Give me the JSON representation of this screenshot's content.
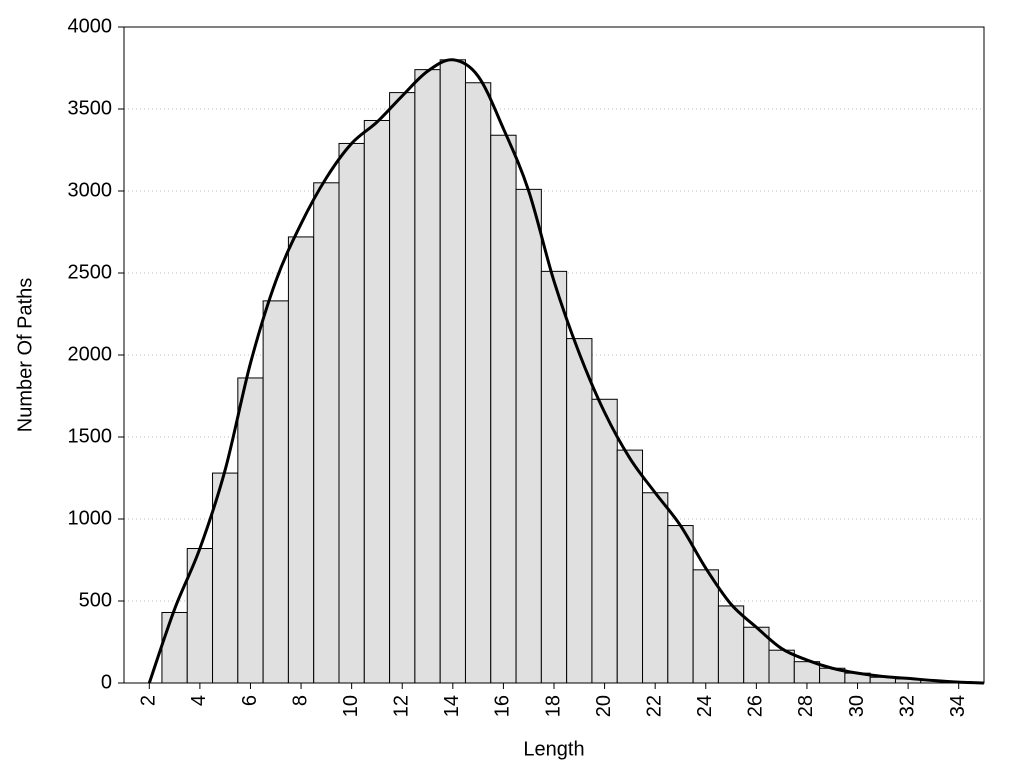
{
  "chart_data": {
    "type": "histogram",
    "xlabel": "Length",
    "ylabel": "Number Of Paths",
    "bins": [
      2.5,
      3.5,
      4.5,
      5.5,
      6.5,
      7.5,
      8.5,
      9.5,
      10.5,
      11.5,
      12.5,
      13.5,
      14.5,
      15.5,
      16.5,
      17.5,
      18.5,
      19.5,
      20.5,
      21.5,
      22.5,
      23.5,
      24.5,
      25.5,
      26.5,
      27.5,
      28.5,
      29.5,
      30.5,
      31.5,
      32.5,
      33.5,
      34.5
    ],
    "values": [
      430,
      820,
      1280,
      1860,
      2330,
      2720,
      3050,
      3290,
      3430,
      3600,
      3740,
      3800,
      3660,
      3340,
      3010,
      2510,
      2100,
      1730,
      1420,
      1160,
      960,
      690,
      470,
      340,
      200,
      130,
      90,
      60,
      35,
      25,
      15,
      8
    ],
    "color": "#e0e0e0",
    "line": {
      "x": [
        2,
        3,
        4,
        5,
        6,
        7,
        8,
        9,
        10,
        11,
        12,
        13,
        14,
        15,
        16,
        17,
        18,
        19,
        20,
        21,
        22,
        23,
        24,
        25,
        26,
        27,
        28,
        29,
        30,
        31,
        32,
        33,
        34,
        35
      ],
      "values": [
        0,
        450,
        820,
        1300,
        1950,
        2450,
        2800,
        3080,
        3290,
        3420,
        3580,
        3730,
        3800,
        3700,
        3380,
        3000,
        2450,
        2010,
        1650,
        1370,
        1160,
        960,
        700,
        480,
        340,
        210,
        140,
        90,
        60,
        40,
        28,
        15,
        5,
        0
      ],
      "color": "#000000"
    },
    "xlim": [
      1,
      35
    ],
    "ylim": [
      0,
      4000
    ],
    "xticks": [
      2,
      4,
      6,
      8,
      10,
      12,
      14,
      16,
      18,
      20,
      22,
      24,
      26,
      28,
      30,
      32,
      34
    ],
    "yticks": [
      0,
      500,
      1000,
      1500,
      2000,
      2500,
      3000,
      3500,
      4000
    ],
    "grid": true
  }
}
